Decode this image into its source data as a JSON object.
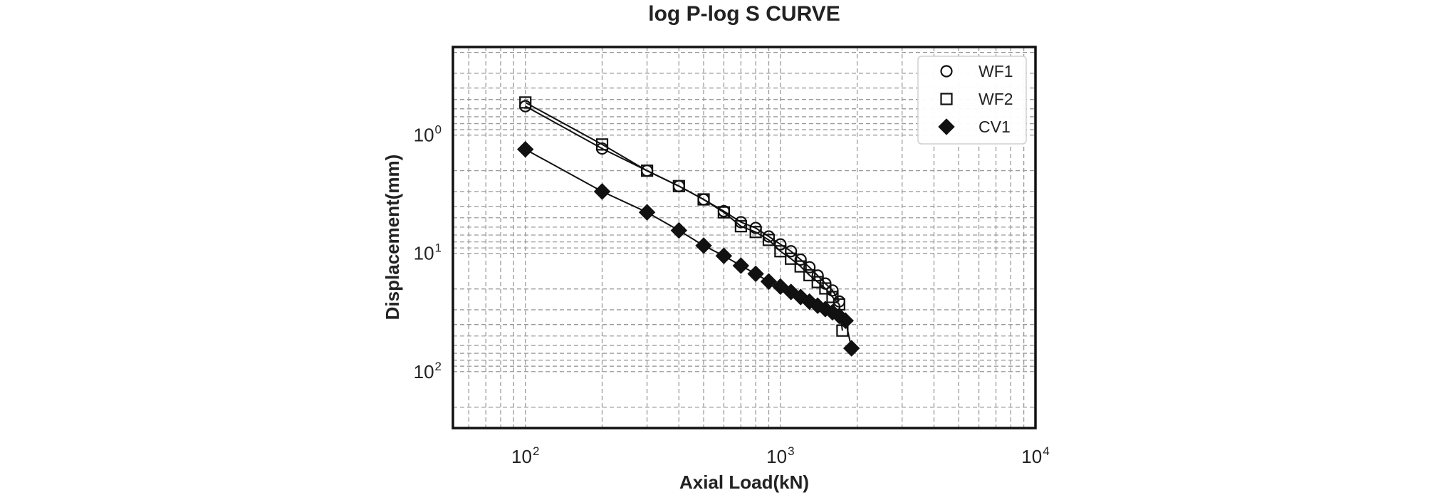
{
  "chart_data": {
    "type": "line",
    "title": "log P-log S CURVE",
    "xlabel": "Axial Load(kN)",
    "ylabel": "Displacement(mm)",
    "x_scale": "log",
    "y_scale": "log",
    "y_inverted": true,
    "xlim": [
      52,
      10000
    ],
    "ylim": [
      0.18,
      300
    ],
    "grid": true,
    "legend_position": "top-right",
    "x_ticks": [
      {
        "base": "10",
        "exp": "2",
        "value": 100
      },
      {
        "base": "10",
        "exp": "3",
        "value": 1000
      },
      {
        "base": "10",
        "exp": "4",
        "value": 10000
      }
    ],
    "y_ticks": [
      {
        "base": "10",
        "exp": "0",
        "value": 1
      },
      {
        "base": "10",
        "exp": "1",
        "value": 10
      },
      {
        "base": "10",
        "exp": "2",
        "value": 100
      }
    ],
    "series": [
      {
        "name": "WF1",
        "marker": "circle",
        "x": [
          100,
          200,
          300,
          400,
          500,
          600,
          700,
          800,
          900,
          1000,
          1100,
          1200,
          1300,
          1400,
          1500,
          1600,
          1700
        ],
        "y": [
          0.57,
          1.3,
          2.0,
          2.7,
          3.5,
          4.4,
          5.45,
          6.1,
          7.2,
          8.4,
          9.6,
          11.3,
          13.1,
          15.4,
          18.0,
          20.6,
          25.5
        ]
      },
      {
        "name": "WF2",
        "marker": "square",
        "x": [
          100,
          200,
          300,
          400,
          500,
          600,
          700,
          800,
          900,
          1000,
          1100,
          1200,
          1300,
          1400,
          1500,
          1600,
          1700,
          1750
        ],
        "y": [
          0.53,
          1.2,
          2.0,
          2.7,
          3.5,
          4.5,
          5.9,
          6.6,
          7.7,
          9.6,
          11.1,
          12.9,
          15.3,
          17.5,
          19.8,
          23.4,
          27.0,
          45.0
        ]
      },
      {
        "name": "CV1",
        "marker": "diamond",
        "x": [
          100,
          200,
          300,
          400,
          500,
          600,
          700,
          800,
          900,
          1000,
          1100,
          1200,
          1300,
          1400,
          1500,
          1600,
          1700,
          1800,
          1900
        ],
        "y": [
          1.32,
          3.0,
          4.5,
          6.4,
          8.6,
          10.5,
          12.7,
          14.9,
          17.3,
          19.1,
          21.2,
          23.4,
          25.6,
          27.7,
          29.6,
          31.5,
          33.8,
          37.1,
          63.5
        ]
      }
    ]
  }
}
